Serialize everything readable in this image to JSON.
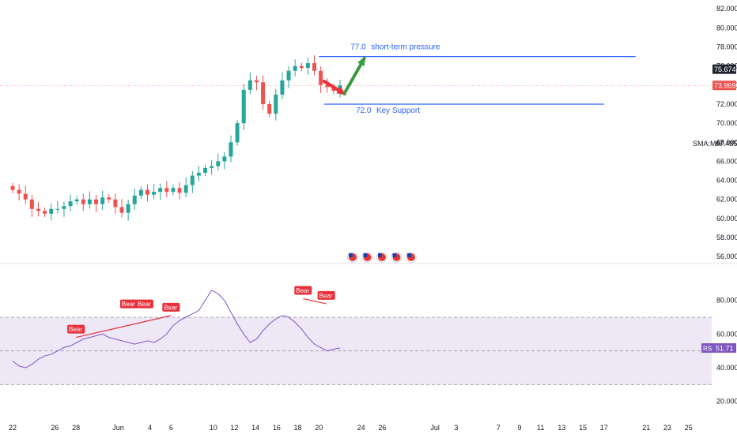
{
  "chart_data": [
    {
      "type": "candlestick",
      "y_ticks": [
        82,
        80,
        78,
        76,
        74,
        72,
        70,
        68,
        66,
        64,
        62,
        60,
        58,
        56
      ],
      "y_tick_labels": [
        "82.000",
        "80.000",
        "78.000",
        "76.000",
        "74.000",
        "72.000",
        "70.000",
        "68.000",
        "66.000",
        "64.000",
        "62.000",
        "60.000",
        "58.000",
        "56.000"
      ],
      "ylim": [
        55.6,
        82.6
      ],
      "x_ticks": [
        {
          "label": "22",
          "day": 0
        },
        {
          "label": "26",
          "day": 4
        },
        {
          "label": "28",
          "day": 6
        },
        {
          "label": "Jun",
          "day": 10
        },
        {
          "label": "4",
          "day": 13
        },
        {
          "label": "6",
          "day": 15
        },
        {
          "label": "10",
          "day": 19
        },
        {
          "label": "12",
          "day": 21
        },
        {
          "label": "14",
          "day": 23
        },
        {
          "label": "16",
          "day": 25
        },
        {
          "label": "18",
          "day": 27
        },
        {
          "label": "20",
          "day": 29
        },
        {
          "label": "24",
          "day": 33
        },
        {
          "label": "26",
          "day": 35
        },
        {
          "label": "Jul",
          "day": 40
        },
        {
          "label": "3",
          "day": 42
        },
        {
          "label": "7",
          "day": 46
        },
        {
          "label": "9",
          "day": 48
        },
        {
          "label": "11",
          "day": 50
        },
        {
          "label": "13",
          "day": 52
        },
        {
          "label": "15",
          "day": 54
        },
        {
          "label": "17",
          "day": 56
        },
        {
          "label": "21",
          "day": 60
        },
        {
          "label": "23",
          "day": 62
        },
        {
          "label": "25",
          "day": 64
        }
      ],
      "xlim_days": [
        -1.2,
        66.2
      ],
      "price_close": [
        63.0,
        62.6,
        62.0,
        61.0,
        60.8,
        60.5,
        61.0,
        61.0,
        61.3,
        61.8,
        62.0,
        61.5,
        62.0,
        61.5,
        62.2,
        62.0,
        61.2,
        60.6,
        61.5,
        62.4,
        63.0,
        62.5,
        62.8,
        63.2,
        62.8,
        63.2,
        62.7,
        63.5,
        64.5,
        64.8,
        65.3,
        65.5,
        66.0,
        66.5,
        68.0,
        70.0,
        73.5,
        74.5,
        74.3,
        72.0,
        71.0,
        73.0,
        74.5,
        75.5,
        76.0,
        75.8,
        76.3,
        75.5,
        74.0,
        73.8,
        73.4,
        73.969
      ],
      "last_candle_day": 31,
      "current_price": 73.969,
      "current_price_label": "73.969",
      "reference_price": 75.674,
      "reference_price_label": "75.674",
      "sma_label": "SMA:MA",
      "sma_value": "67.485",
      "levels": [
        {
          "name": "short-term pressure",
          "value": 77.0,
          "value_label": "77.0",
          "text": "short-term pressure",
          "from_day": 29,
          "to_day": 59
        },
        {
          "name": "Key Support",
          "value": 72.0,
          "value_label": "72.0",
          "text": "Key Support",
          "from_day": 29.5,
          "to_day": 56
        }
      ],
      "arrows": [
        {
          "color": "#e8303a",
          "from": [
            29.5,
            74.4
          ],
          "to": [
            31.4,
            73.1
          ]
        },
        {
          "color": "#3a9b3c",
          "from": [
            31.4,
            73.1
          ],
          "to": [
            33.3,
            76.8
          ]
        }
      ],
      "event_markers": {
        "count": 5,
        "icon": "us-flag-icon"
      },
      "colors": {
        "up": "#26a69a",
        "down": "#ef5350",
        "level_line": "#2962ff",
        "price_tag": "#ef5350",
        "ref_tag": "#1e222d"
      }
    },
    {
      "type": "line",
      "name": "RSI",
      "value_label": "51.71",
      "y_ticks": [
        80,
        60,
        40,
        20
      ],
      "y_tick_labels": [
        "80.000",
        "60.000",
        "40.000",
        "20.000"
      ],
      "upper_band": 70,
      "lower_band": 30,
      "mid_line": 50,
      "values": [
        44,
        41,
        40,
        42,
        45,
        47,
        48,
        50,
        52,
        53,
        55,
        57,
        58,
        59,
        60,
        58,
        57,
        56,
        55,
        54,
        55,
        56,
        55,
        57,
        60,
        65,
        68,
        70,
        72,
        74,
        80,
        86,
        84,
        80,
        73,
        66,
        60,
        55,
        57,
        62,
        66,
        69,
        71,
        70,
        67,
        63,
        58,
        54,
        52,
        50,
        51,
        51.71
      ],
      "divergence_labels": [
        {
          "text": "Bear",
          "day": 6,
          "rsi": 58
        },
        {
          "text": "Bear",
          "day": 11,
          "rsi": 73
        },
        {
          "text": "Bear",
          "day": 12.5,
          "rsi": 73
        },
        {
          "text": "Bear",
          "day": 15,
          "rsi": 71
        },
        {
          "text": "Bear",
          "day": 27.5,
          "rsi": 81
        },
        {
          "text": "Bear",
          "day": 29.7,
          "rsi": 78
        }
      ],
      "colors": {
        "line": "#7e57c2",
        "band_fill": "#ede7f6",
        "bear": "#e8303a",
        "value_tag": "#7e57c2"
      }
    }
  ]
}
